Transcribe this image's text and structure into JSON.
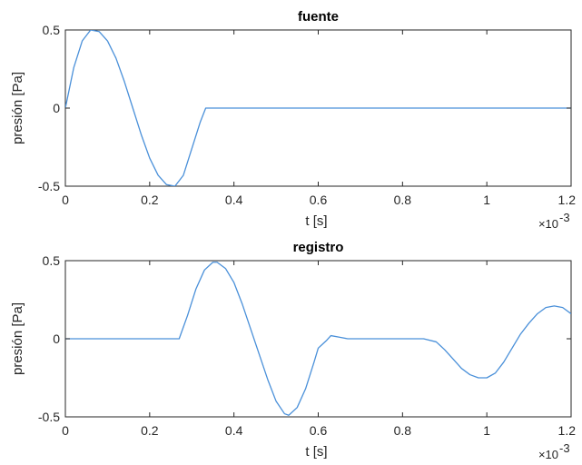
{
  "chart_data": [
    {
      "type": "line",
      "title": "fuente",
      "xlabel": "t [s]",
      "ylabel": "presión [Pa]",
      "x_multiplier_label": "×10",
      "x_multiplier_exp": "-3",
      "xlim": [
        0,
        0.0012
      ],
      "ylim": [
        -0.5,
        0.5
      ],
      "x_ticks": [
        0,
        0.0002,
        0.0004,
        0.0006,
        0.0008,
        0.001,
        0.0012
      ],
      "x_tick_labels": [
        "0",
        "0.2",
        "0.4",
        "0.6",
        "0.8",
        "1",
        "1.2"
      ],
      "y_ticks": [
        -0.5,
        0,
        0.5
      ],
      "y_tick_labels": [
        "-0.5",
        "0",
        "0.5"
      ],
      "grid": false,
      "color": "#4a90d9",
      "series": [
        {
          "x": [
            0,
            2e-05,
            4e-05,
            6e-05,
            8e-05,
            0.0001,
            0.00012,
            0.00014,
            0.00016,
            0.00018,
            0.0002,
            0.00022,
            0.00024,
            0.00026,
            0.00028,
            0.0003,
            0.00032,
            0.000333,
            0.00034,
            0.0004,
            0.0005,
            0.0006,
            0.0007,
            0.0008,
            0.0009,
            0.001,
            0.0011,
            0.0012
          ],
          "y": [
            0,
            0.26,
            0.43,
            0.5,
            0.49,
            0.43,
            0.32,
            0.17,
            0.0,
            -0.17,
            -0.32,
            -0.43,
            -0.49,
            -0.5,
            -0.43,
            -0.26,
            -0.09,
            0,
            0,
            0,
            0,
            0,
            0,
            0,
            0,
            0,
            0,
            0
          ]
        }
      ]
    },
    {
      "type": "line",
      "title": "registro",
      "xlabel": "t [s]",
      "ylabel": "presión [Pa]",
      "x_multiplier_label": "×10",
      "x_multiplier_exp": "-3",
      "xlim": [
        0,
        0.0012
      ],
      "ylim": [
        -0.5,
        0.5
      ],
      "x_ticks": [
        0,
        0.0002,
        0.0004,
        0.0006,
        0.0008,
        0.001,
        0.0012
      ],
      "x_tick_labels": [
        "0",
        "0.2",
        "0.4",
        "0.6",
        "0.8",
        "1",
        "1.2"
      ],
      "y_ticks": [
        -0.5,
        0,
        0.5
      ],
      "y_tick_labels": [
        "-0.5",
        "0",
        "0.5"
      ],
      "grid": false,
      "color": "#4a90d9",
      "series": [
        {
          "x": [
            0,
            0.00027,
            0.00029,
            0.00031,
            0.00033,
            0.00035,
            0.00036,
            0.00038,
            0.0004,
            0.00042,
            0.00044,
            0.00046,
            0.00048,
            0.0005,
            0.00052,
            0.00053,
            0.00055,
            0.00057,
            0.00059,
            0.0006,
            0.00062,
            0.00063,
            0.00065,
            0.00067,
            0.0007,
            0.00075,
            0.0008,
            0.00085,
            0.00088,
            0.0009,
            0.00092,
            0.00094,
            0.00096,
            0.00098,
            0.001,
            0.00102,
            0.00104,
            0.00106,
            0.00108,
            0.0011,
            0.00112,
            0.00114,
            0.00116,
            0.00118,
            0.0012
          ],
          "y": [
            0,
            0,
            0.15,
            0.32,
            0.44,
            0.49,
            0.49,
            0.45,
            0.36,
            0.22,
            0.06,
            -0.1,
            -0.26,
            -0.4,
            -0.48,
            -0.49,
            -0.44,
            -0.32,
            -0.15,
            -0.06,
            -0.01,
            0.02,
            0.01,
            0,
            0,
            0,
            0,
            0,
            -0.02,
            -0.07,
            -0.13,
            -0.19,
            -0.23,
            -0.25,
            -0.25,
            -0.22,
            -0.15,
            -0.06,
            0.03,
            0.1,
            0.16,
            0.2,
            0.21,
            0.2,
            0.16
          ]
        }
      ]
    }
  ]
}
